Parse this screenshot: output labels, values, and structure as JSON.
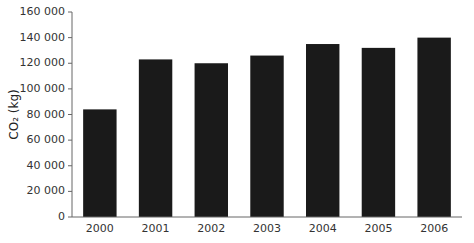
{
  "chart_data": {
    "type": "bar",
    "categories": [
      "2000",
      "2001",
      "2002",
      "2003",
      "2004",
      "2005",
      "2006"
    ],
    "values": [
      84000,
      123000,
      120000,
      126000,
      135000,
      132000,
      140000
    ],
    "color": "#1a1a1a",
    "y_label": "CO₂ (kg)",
    "ylim": [
      0,
      160000
    ],
    "yticks": [
      0,
      {
        "value": 20000,
        "label": "20 000"
      },
      {
        "value": 40000,
        "label": "40 000"
      },
      {
        "value": 60000,
        "label": "60 000"
      },
      {
        "value": 80000,
        "label": "80 000"
      },
      {
        "value": 100000,
        "label": "100 000"
      },
      {
        "value": 120000,
        "label": "120 000"
      },
      {
        "value": 140000,
        "label": "140 000"
      },
      {
        "value": 160000,
        "label": "160 000"
      }
    ],
    "grid": false
  }
}
